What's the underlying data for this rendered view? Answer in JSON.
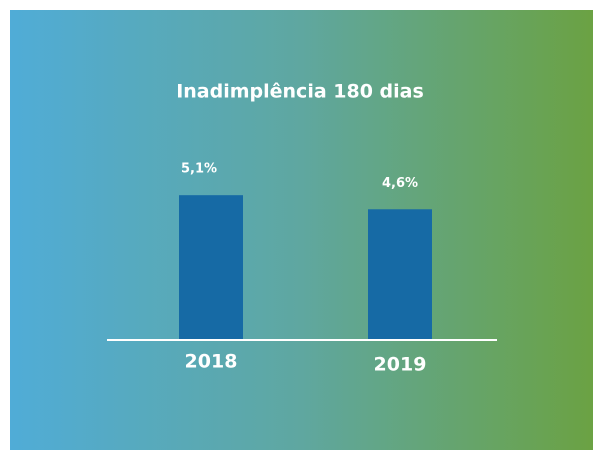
{
  "chart_data": {
    "type": "bar",
    "title": "Inadimplência 180 dias",
    "categories": [
      "2018",
      "2019"
    ],
    "values": [
      5.1,
      4.6
    ],
    "value_labels": [
      "5,1%",
      "4,6%"
    ],
    "color": "#166aa5"
  }
}
